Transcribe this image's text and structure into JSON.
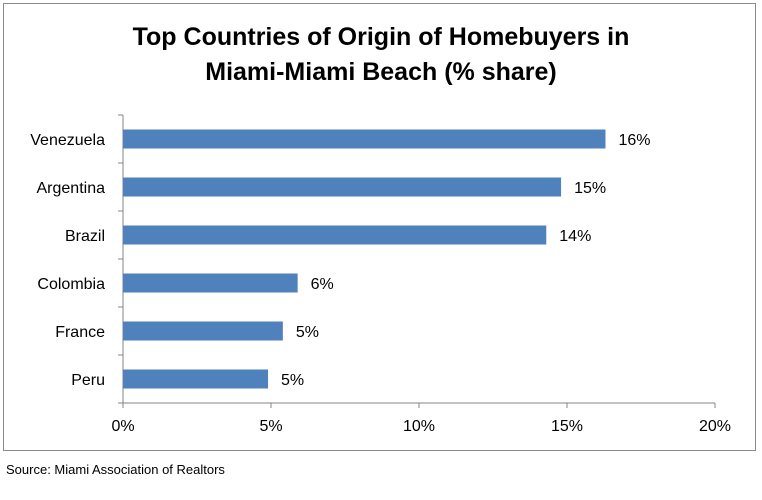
{
  "chart_data": {
    "type": "bar",
    "orientation": "horizontal",
    "title": "Top Countries of Origin of Homebuyers in Miami-Miami Beach (% share)",
    "title_lines": [
      "Top Countries of Origin of Homebuyers in",
      "Miami-Miami Beach (% share)"
    ],
    "categories": [
      "Venezuela",
      "Argentina",
      "Brazil",
      "Colombia",
      "France",
      "Peru"
    ],
    "values": [
      16.3,
      14.8,
      14.3,
      5.9,
      5.4,
      4.9
    ],
    "value_labels": [
      "16%",
      "15%",
      "14%",
      "6%",
      "5%",
      "5%"
    ],
    "xlim": [
      0,
      20
    ],
    "xticks": [
      0,
      5,
      10,
      15,
      20
    ],
    "xtick_labels": [
      "0%",
      "5%",
      "10%",
      "15%",
      "20%"
    ],
    "xlabel": "",
    "ylabel": "",
    "grid": false,
    "legend": "none",
    "bar_color": "#4f81bd"
  },
  "source": "Source: Miami Association of Realtors"
}
